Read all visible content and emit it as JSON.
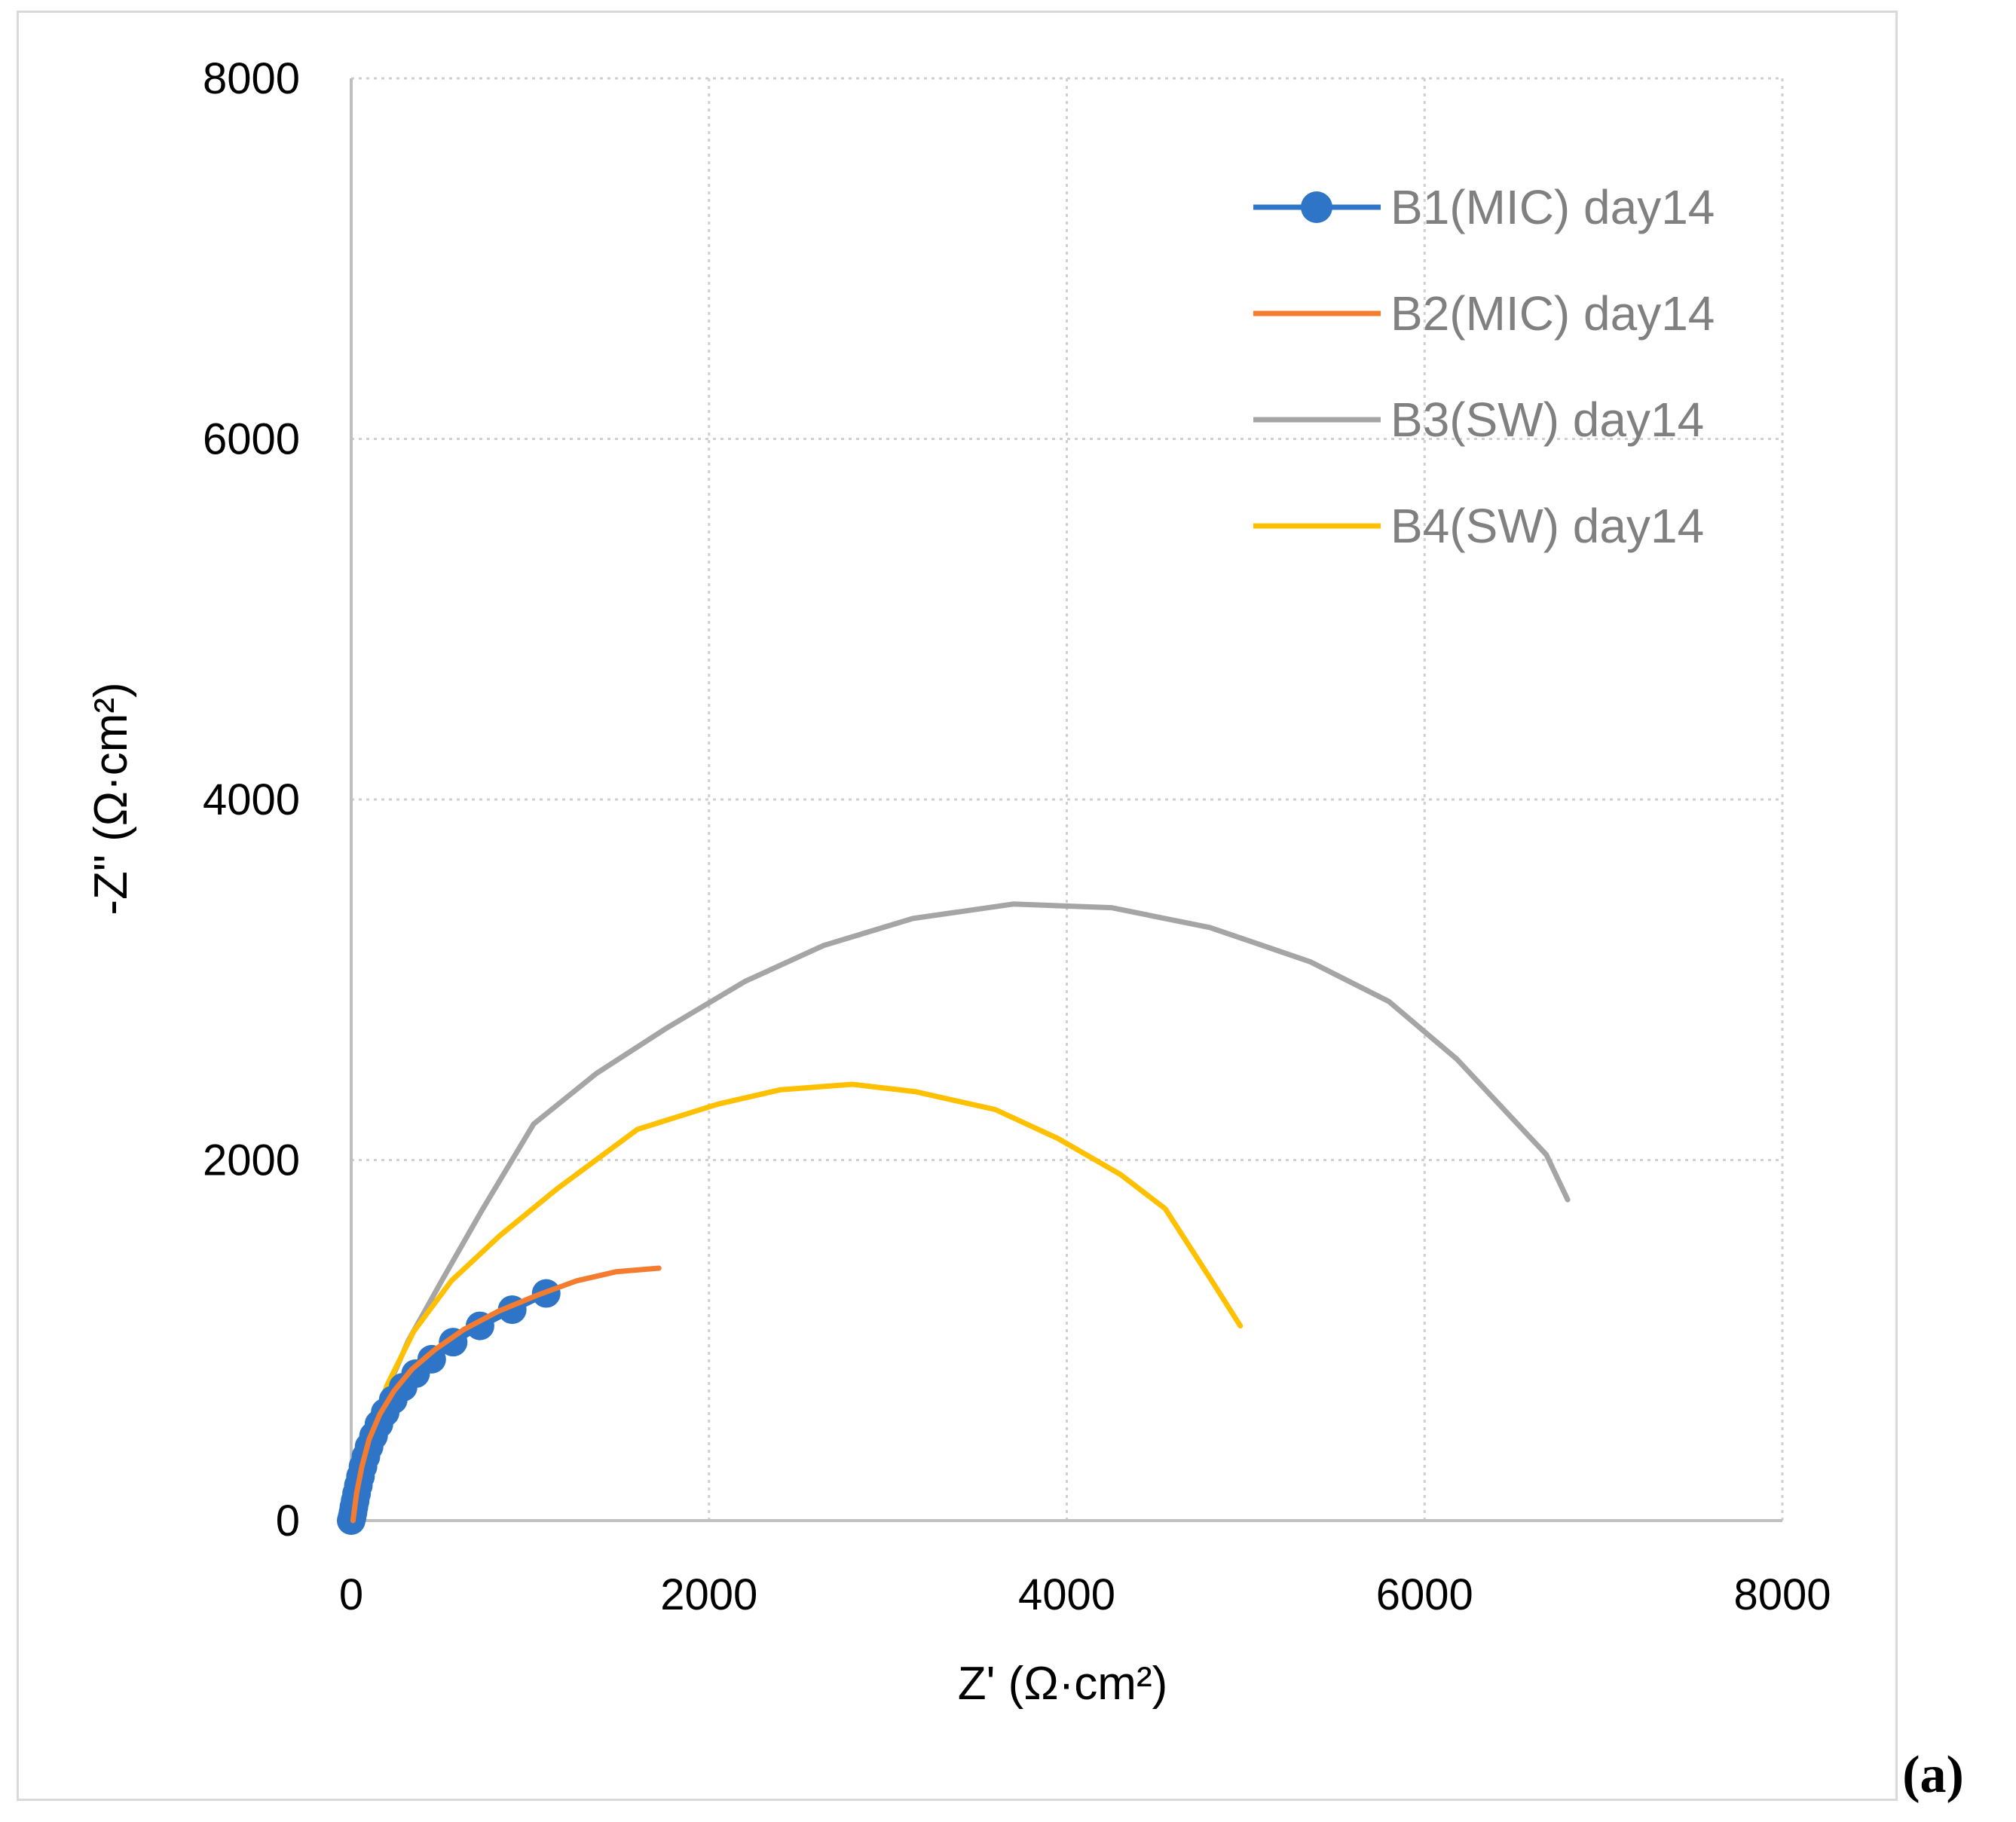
{
  "chart_data": {
    "type": "scatter",
    "title": "",
    "xlabel": "Z' (Ω·cm²)",
    "ylabel": "-Z\" (Ω·cm²)",
    "xlim": [
      0,
      8000
    ],
    "ylim": [
      0,
      8000
    ],
    "xticks": [
      "0",
      "2000",
      "4000",
      "6000",
      "8000"
    ],
    "yticks": [
      "0",
      "2000",
      "4000",
      "6000",
      "8000"
    ],
    "grid": true,
    "legend_position": "top-right",
    "panel_label": "(a)",
    "series": [
      {
        "name": "B1(MIC) day14",
        "color": "#2E75C8",
        "markers": true,
        "x": [
          0,
          5,
          10,
          15,
          22,
          30,
          40,
          52,
          66,
          82,
          100,
          125,
          155,
          190,
          235,
          290,
          360,
          450,
          570,
          720,
          900,
          1090
        ],
        "y": [
          0,
          20,
          45,
          75,
          110,
          150,
          195,
          245,
          300,
          355,
          410,
          470,
          535,
          600,
          670,
          740,
          815,
          895,
          990,
          1080,
          1170,
          1260
        ]
      },
      {
        "name": "B2(MIC) day14",
        "color": "#F47C30",
        "markers": false,
        "x": [
          10,
          30,
          60,
          100,
          160,
          240,
          340,
          470,
          630,
          820,
          1040,
          1260,
          1480,
          1720
        ],
        "y": [
          0,
          150,
          300,
          450,
          590,
          720,
          840,
          950,
          1060,
          1160,
          1250,
          1330,
          1380,
          1400
        ]
      },
      {
        "name": "B3(SW) day14",
        "color": "#A5A5A5",
        "markers": false,
        "x": [
          20,
          80,
          180,
          320,
          500,
          730,
          1020,
          1370,
          1760,
          2200,
          2640,
          3140,
          3700,
          4250,
          4800,
          5360,
          5800,
          6180,
          6680,
          6800
        ],
        "y": [
          0,
          350,
          680,
          1000,
          1320,
          1720,
          2200,
          2480,
          2730,
          2990,
          3190,
          3340,
          3420,
          3400,
          3290,
          3100,
          2880,
          2560,
          2030,
          1780
        ]
      },
      {
        "name": "B4(SW) day14",
        "color": "#FFC000",
        "markers": false,
        "x": [
          20,
          90,
          200,
          350,
          560,
          830,
          1150,
          1600,
          2050,
          2400,
          2800,
          3150,
          3600,
          3950,
          4300,
          4550,
          4830,
          4970
        ],
        "y": [
          0,
          420,
          750,
          1050,
          1330,
          1580,
          1840,
          2170,
          2310,
          2390,
          2420,
          2380,
          2280,
          2120,
          1920,
          1730,
          1300,
          1080
        ]
      }
    ]
  }
}
